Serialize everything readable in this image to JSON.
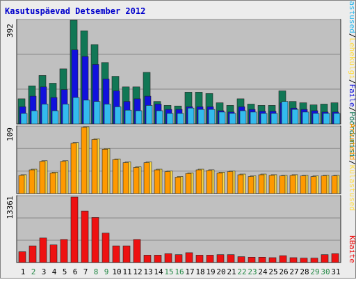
{
  "title": "Kasutuspäevad Detsember 2012",
  "colors": {
    "background": "#ececec",
    "panel": "#c0c0c0",
    "title_text": "#0000cc",
    "pages_bar": "#117755",
    "files_bar": "#1111dd",
    "visits_bar": "#33bbee",
    "hosts_bar": "#ffdd44",
    "visitors_bar": "#ff9900",
    "kbytes_bar": "#ee1111",
    "weekday_label": "#000000",
    "weekend_label": "#228844"
  },
  "labels": {
    "visits": "Külastused",
    "pages": "Lehekülgi",
    "files": "Faile",
    "hits": "Pöördumisi",
    "visitors": "Arvuteid",
    "kbytes": "KBaite",
    "hits_max": "392",
    "visitors_max": "109",
    "kbytes_max": "13361"
  },
  "chart_data": [
    {
      "type": "bar",
      "title": "Kasutuspäevad Detsember 2012",
      "categories": [
        "1",
        "2",
        "3",
        "4",
        "5",
        "6",
        "7",
        "8",
        "9",
        "10",
        "11",
        "12",
        "13",
        "14",
        "15",
        "16",
        "17",
        "18",
        "19",
        "20",
        "21",
        "22",
        "23",
        "24",
        "25",
        "26",
        "27",
        "28",
        "29",
        "30",
        "31"
      ],
      "weekend": [
        false,
        true,
        false,
        false,
        false,
        false,
        false,
        true,
        true,
        false,
        false,
        false,
        false,
        false,
        true,
        true,
        false,
        false,
        false,
        false,
        false,
        true,
        true,
        false,
        false,
        false,
        false,
        false,
        true,
        true,
        false
      ],
      "ylim": [
        0,
        392
      ],
      "series": [
        {
          "name": "Pöördumisi",
          "values": [
            95,
            144,
            183,
            154,
            208,
            392,
            352,
            300,
            232,
            180,
            140,
            140,
            195,
            85,
            70,
            68,
            120,
            120,
            115,
            80,
            70,
            95,
            75,
            70,
            70,
            125,
            85,
            80,
            72,
            75,
            80
          ]
        },
        {
          "name": "Faile",
          "values": [
            65,
            105,
            140,
            100,
            130,
            280,
            255,
            225,
            170,
            125,
            85,
            95,
            105,
            75,
            55,
            55,
            65,
            65,
            65,
            50,
            45,
            65,
            55,
            48,
            48,
            80,
            60,
            55,
            50,
            45,
            45
          ]
        },
        {
          "name": "Lehekülgi",
          "values": [
            40,
            50,
            75,
            50,
            75,
            100,
            90,
            85,
            75,
            65,
            52,
            50,
            70,
            50,
            40,
            40,
            60,
            55,
            55,
            45,
            40,
            50,
            45,
            40,
            40,
            85,
            55,
            45,
            40,
            40,
            40
          ]
        },
        {
          "name": "Külastused",
          "values": [
            35,
            45,
            68,
            50,
            70,
            98,
            90,
            85,
            70,
            62,
            50,
            50,
            65,
            45,
            38,
            38,
            57,
            55,
            52,
            42,
            38,
            48,
            42,
            38,
            38,
            80,
            52,
            42,
            38,
            38,
            38
          ]
        }
      ]
    },
    {
      "type": "bar",
      "categories": [
        "1",
        "2",
        "3",
        "4",
        "5",
        "6",
        "7",
        "8",
        "9",
        "10",
        "11",
        "12",
        "13",
        "14",
        "15",
        "16",
        "17",
        "18",
        "19",
        "20",
        "21",
        "22",
        "23",
        "24",
        "25",
        "26",
        "27",
        "28",
        "29",
        "30",
        "31"
      ],
      "ylim": [
        0,
        109
      ],
      "series": [
        {
          "name": "Arvuteid",
          "values": [
            30,
            39,
            53,
            34,
            53,
            83,
            109,
            89,
            73,
            56,
            51,
            43,
            51,
            39,
            36,
            27,
            33,
            39,
            38,
            34,
            36,
            31,
            28,
            31,
            30,
            29,
            30,
            29,
            28,
            29,
            29
          ]
        }
      ]
    },
    {
      "type": "bar",
      "categories": [
        "1",
        "2",
        "3",
        "4",
        "5",
        "6",
        "7",
        "8",
        "9",
        "10",
        "11",
        "12",
        "13",
        "14",
        "15",
        "16",
        "17",
        "18",
        "19",
        "20",
        "21",
        "22",
        "23",
        "24",
        "25",
        "26",
        "27",
        "28",
        "29",
        "30",
        "31"
      ],
      "ylim": [
        0,
        13361
      ],
      "series": [
        {
          "name": "KBaite",
          "values": [
            2200,
            3400,
            5000,
            3600,
            4700,
            13361,
            10500,
            9200,
            6000,
            3400,
            3400,
            4700,
            1500,
            1500,
            1800,
            1600,
            2000,
            1500,
            1500,
            1600,
            1600,
            1200,
            1100,
            1100,
            1000,
            1400,
            1000,
            900,
            900,
            1600,
            1800
          ]
        }
      ]
    }
  ]
}
